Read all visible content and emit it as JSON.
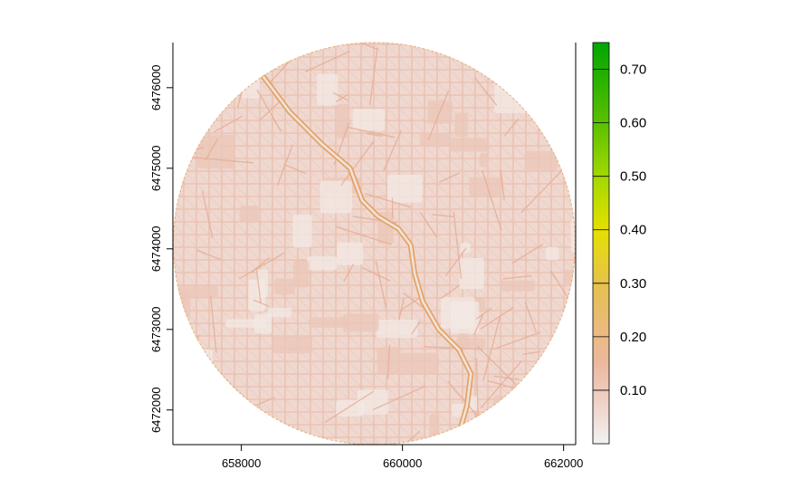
{
  "chart_data": {
    "type": "heatmap",
    "title": "",
    "xlabel": "",
    "ylabel": "",
    "xlim": [
      657150,
      662150
    ],
    "ylim": [
      6471570,
      6476560
    ],
    "x_ticks": [
      658000,
      660000,
      662000
    ],
    "x_tick_labels": [
      "658000",
      "660000",
      "662000"
    ],
    "y_ticks": [
      6472000,
      6473000,
      6474000,
      6475000,
      6476000
    ],
    "y_tick_labels": [
      "6472000",
      "6473000",
      "6474000",
      "6475000",
      "6476000"
    ],
    "raster_extent": {
      "center_x": 659650,
      "center_y": 6474065,
      "radius": 2500,
      "shape": "circle"
    },
    "dominant_value_range": [
      0.05,
      0.2
    ],
    "legend": {
      "placement": "right",
      "range": [
        0,
        0.75
      ],
      "breaks": [
        0.1,
        0.2,
        0.3,
        0.4,
        0.5,
        0.6,
        0.7
      ],
      "labels": [
        "0.10",
        "0.20",
        "0.30",
        "0.40",
        "0.50",
        "0.60",
        "0.70"
      ],
      "colors": [
        {
          "value": 0.0,
          "color": "#f2f2f2"
        },
        {
          "value": 0.05,
          "color": "#f0dcd6"
        },
        {
          "value": 0.15,
          "color": "#ecb89e"
        },
        {
          "value": 0.25,
          "color": "#e8bc6a"
        },
        {
          "value": 0.3,
          "color": "#e6c24c"
        },
        {
          "value": 0.4,
          "color": "#e5e000"
        },
        {
          "value": 0.5,
          "color": "#a2d800"
        },
        {
          "value": 0.6,
          "color": "#5ac000"
        },
        {
          "value": 0.75,
          "color": "#00a600"
        }
      ]
    },
    "river_path": [
      [
        658150,
        6476300
      ],
      [
        658600,
        6475700
      ],
      [
        659000,
        6475300
      ],
      [
        659350,
        6475000
      ],
      [
        659500,
        6474600
      ],
      [
        659700,
        6474400
      ],
      [
        659950,
        6474250
      ],
      [
        660100,
        6474050
      ],
      [
        660150,
        6473700
      ],
      [
        660250,
        6473350
      ],
      [
        660450,
        6473000
      ],
      [
        660700,
        6472750
      ],
      [
        660850,
        6472450
      ],
      [
        660800,
        6472050
      ],
      [
        660700,
        6471700
      ]
    ]
  }
}
